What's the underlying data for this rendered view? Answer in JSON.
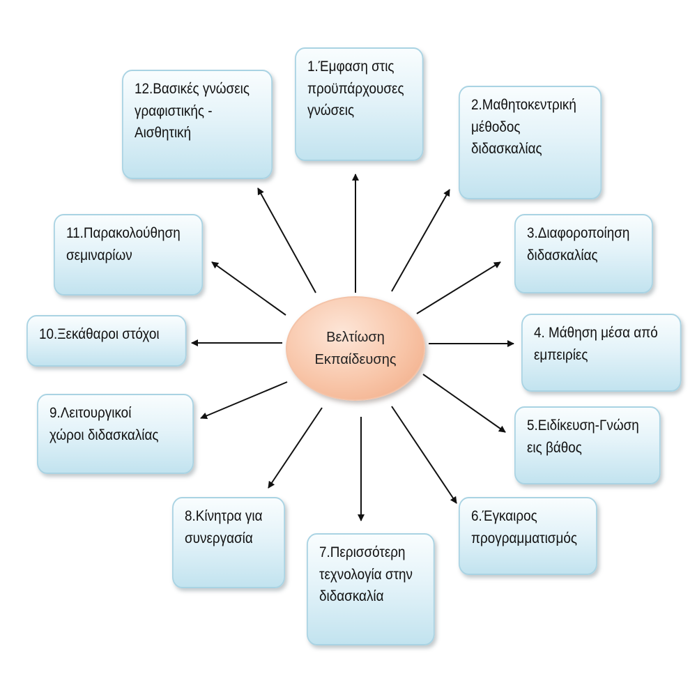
{
  "center": {
    "lines": [
      "Βελτίωση",
      "Εκπαίδευσης"
    ]
  },
  "nodes": [
    {
      "lines": [
        "1.Έμφαση στις",
        "προϋπάρχουσες",
        "γνώσεις"
      ]
    },
    {
      "lines": [
        "2.Μαθητοκεντρική",
        "μέθοδος",
        "διδασκαλίας"
      ]
    },
    {
      "lines": [
        "3.Διαφοροποίηση",
        "διδασκαλίας"
      ]
    },
    {
      "lines": [
        "4. Μάθηση μέσα από",
        "εμπειρίες"
      ]
    },
    {
      "lines": [
        "5.Ειδίκευση-Γνώση",
        "εις βάθος"
      ]
    },
    {
      "lines": [
        "6.Έγκαιρος",
        "προγραμματισμός"
      ]
    },
    {
      "lines": [
        "7.Περισσότερη",
        "τεχνολογία στην",
        "διδασκαλία"
      ]
    },
    {
      "lines": [
        "8.Κίνητρα για",
        "συνεργασία"
      ]
    },
    {
      "lines": [
        "9.Λειτουργικοί",
        "χώροι διδασκαλίας"
      ]
    },
    {
      "lines": [
        "10.Ξεκάθαροι στόχοι"
      ]
    },
    {
      "lines": [
        "11.Παρακολούθηση",
        "σεμιναρίων"
      ]
    },
    {
      "lines": [
        "12.Βασικές γνώσεις",
        "γραφιστικής -",
        "Αισθητική"
      ]
    }
  ],
  "colors": {
    "arrow": "#111111",
    "node_border": "#a9d3e3",
    "center_fill": "#f8c5a8"
  }
}
